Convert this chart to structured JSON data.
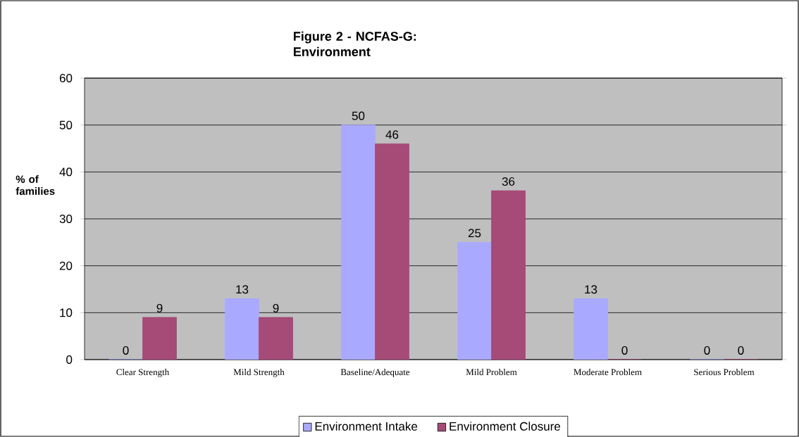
{
  "chart_data": {
    "type": "bar",
    "title": "Figure 2 - NCFAS-G: Environment",
    "ylabel": "% of families",
    "categories": [
      "Clear Strength",
      "Mild Strength",
      "Baseline/Adequate",
      "Mild Problem",
      "Moderate Problem",
      "Serious Problem"
    ],
    "series": [
      {
        "name": "Environment Intake",
        "color": "#a9a9ff",
        "values": [
          0,
          13,
          50,
          25,
          13,
          0
        ]
      },
      {
        "name": "Environment Closure",
        "color": "#a64a78",
        "values": [
          9,
          9,
          46,
          36,
          0,
          0
        ]
      }
    ],
    "ylim": [
      0,
      60
    ],
    "yticks": [
      0,
      10,
      20,
      30,
      40,
      50,
      60
    ],
    "grid": "y",
    "legend": "bottom",
    "data_labels": true
  }
}
